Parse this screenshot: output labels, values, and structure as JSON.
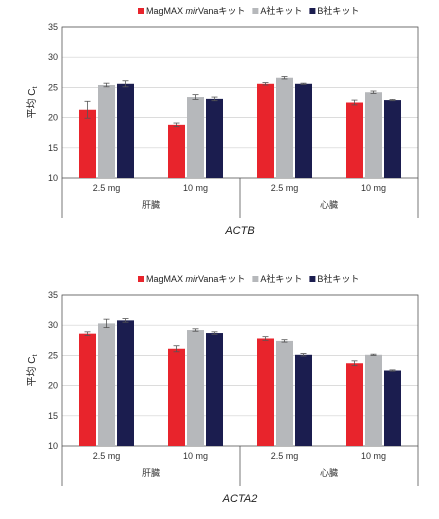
{
  "legend": {
    "items": [
      {
        "name": "magmax",
        "parts": [
          "MagMAX ",
          "mir",
          "Vana",
          "キット"
        ],
        "italic": [
          false,
          true,
          false,
          false
        ],
        "color": "#e8242c"
      },
      {
        "name": "company-a",
        "parts": [
          "A社キット"
        ],
        "italic": [
          false
        ],
        "color": "#b6b8bb"
      },
      {
        "name": "company-b",
        "parts": [
          "B社キット"
        ],
        "italic": [
          false
        ],
        "color": "#1b1d4f"
      }
    ]
  },
  "chart_data": [
    {
      "type": "bar",
      "title": "ACTB",
      "ylabel": "平均 Ct",
      "ylabel_main": "平均 C",
      "ylabel_sub": "t",
      "ylim": [
        10,
        35
      ],
      "yticks": [
        10,
        15,
        20,
        25,
        30,
        35
      ],
      "grid": true,
      "legend_position": "top-right",
      "categories": [
        "2.5 mg",
        "10 mg",
        "2.5 mg",
        "10 mg"
      ],
      "groups": [
        {
          "label": "肝臓",
          "categories": [
            0,
            1
          ]
        },
        {
          "label": "心臓",
          "categories": [
            2,
            3
          ]
        }
      ],
      "series": [
        {
          "name": "MagMAX mirVana キット",
          "color": "#e8242c",
          "values": [
            21.3,
            18.8,
            25.6,
            22.5
          ],
          "errors": [
            1.4,
            0.3,
            0.2,
            0.4
          ]
        },
        {
          "name": "A社キット",
          "color": "#b6b8bb",
          "values": [
            25.4,
            23.4,
            26.6,
            24.2
          ],
          "errors": [
            0.3,
            0.4,
            0.2,
            0.2
          ]
        },
        {
          "name": "B社キット",
          "color": "#1b1d4f",
          "values": [
            25.6,
            23.1,
            25.6,
            22.9
          ],
          "errors": [
            0.5,
            0.3,
            0.1,
            0.1
          ]
        }
      ]
    },
    {
      "type": "bar",
      "title": "ACTA2",
      "ylabel": "平均 Ct",
      "ylabel_main": "平均 C",
      "ylabel_sub": "t",
      "ylim": [
        10,
        35
      ],
      "yticks": [
        10,
        15,
        20,
        25,
        30,
        35
      ],
      "grid": true,
      "legend_position": "top-right",
      "categories": [
        "2.5 mg",
        "10 mg",
        "2.5 mg",
        "10 mg"
      ],
      "groups": [
        {
          "label": "肝臓",
          "categories": [
            0,
            1
          ]
        },
        {
          "label": "心臓",
          "categories": [
            2,
            3
          ]
        }
      ],
      "series": [
        {
          "name": "MagMAX mirVana キット",
          "color": "#e8242c",
          "values": [
            28.6,
            26.1,
            27.8,
            23.7
          ],
          "errors": [
            0.3,
            0.5,
            0.3,
            0.4
          ]
        },
        {
          "name": "A社キット",
          "color": "#b6b8bb",
          "values": [
            30.3,
            29.2,
            27.4,
            25.1
          ],
          "errors": [
            0.7,
            0.2,
            0.2,
            0.1
          ]
        },
        {
          "name": "B社キット",
          "color": "#1b1d4f",
          "values": [
            30.8,
            28.7,
            25.1,
            22.5
          ],
          "errors": [
            0.3,
            0.2,
            0.2,
            0.1
          ]
        }
      ]
    }
  ]
}
